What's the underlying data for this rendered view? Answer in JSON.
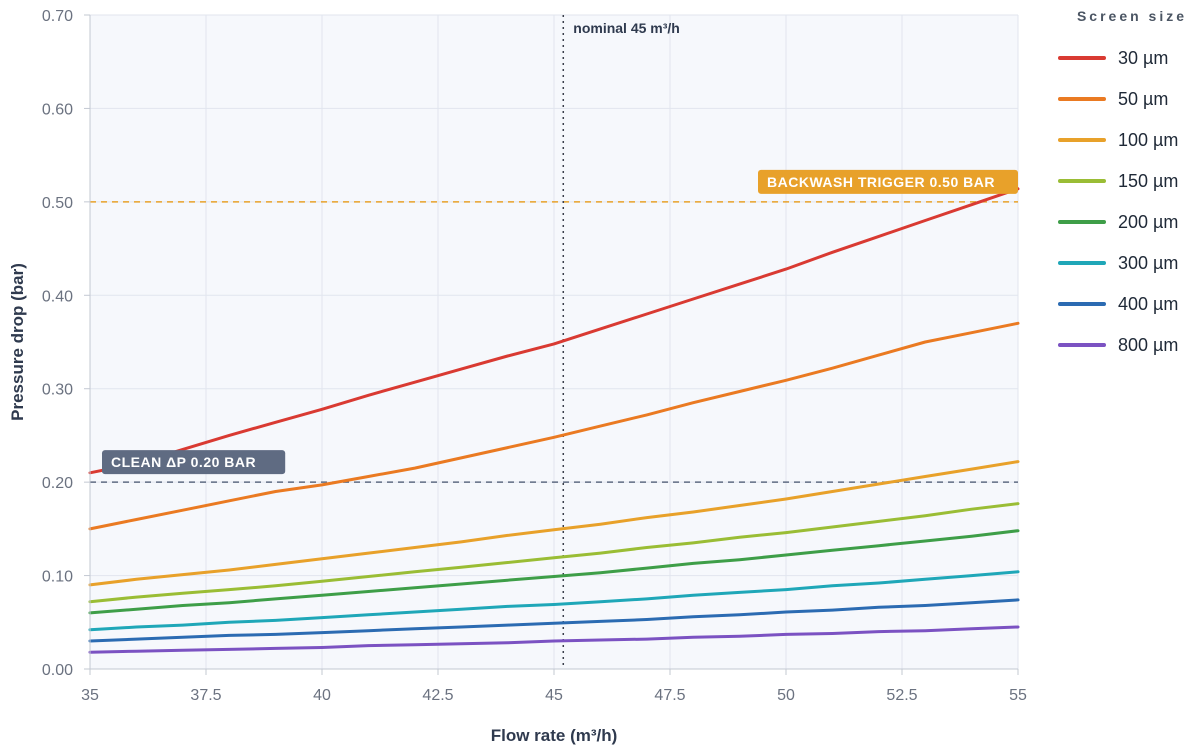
{
  "chart_data": {
    "type": "line",
    "xlabel": "Flow rate (m³/h)",
    "ylabel": "Pressure drop (bar)",
    "xlim": [
      35,
      55
    ],
    "ylim": [
      0,
      0.7
    ],
    "x_ticks": [
      "35",
      "37.5",
      "40",
      "42.5",
      "45",
      "47.5",
      "50",
      "52.5",
      "55"
    ],
    "y_ticks": [
      "0.00",
      "0.10",
      "0.20",
      "0.30",
      "0.40",
      "0.50",
      "0.60",
      "0.70"
    ],
    "grid": true,
    "legend": {
      "title": "Screen size",
      "placement": "right"
    },
    "x": [
      35,
      36,
      37,
      38,
      39,
      40,
      41,
      42,
      43,
      44,
      45,
      46,
      47,
      48,
      49,
      50,
      51,
      52,
      53,
      54,
      55
    ],
    "series": [
      {
        "name": "30 µm",
        "color": "#d93a32",
        "values": [
          0.21,
          0.22,
          0.235,
          0.25,
          0.264,
          0.278,
          0.293,
          0.307,
          0.321,
          0.335,
          0.348,
          0.364,
          0.38,
          0.396,
          0.412,
          0.428,
          0.446,
          0.463,
          0.48,
          0.497,
          0.514
        ]
      },
      {
        "name": "50 µm",
        "color": "#ea7a22",
        "values": [
          0.15,
          0.16,
          0.17,
          0.18,
          0.19,
          0.197,
          0.206,
          0.215,
          0.226,
          0.237,
          0.248,
          0.26,
          0.272,
          0.285,
          0.297,
          0.309,
          0.322,
          0.336,
          0.35,
          0.36,
          0.37
        ]
      },
      {
        "name": "100 µm",
        "color": "#e8a12a",
        "values": [
          0.09,
          0.096,
          0.101,
          0.106,
          0.112,
          0.118,
          0.124,
          0.13,
          0.136,
          0.143,
          0.149,
          0.155,
          0.162,
          0.168,
          0.175,
          0.182,
          0.19,
          0.198,
          0.206,
          0.214,
          0.222
        ]
      },
      {
        "name": "150 µm",
        "color": "#9abd35",
        "values": [
          0.072,
          0.077,
          0.081,
          0.085,
          0.089,
          0.094,
          0.099,
          0.104,
          0.109,
          0.114,
          0.119,
          0.124,
          0.13,
          0.135,
          0.141,
          0.146,
          0.152,
          0.158,
          0.164,
          0.171,
          0.177
        ]
      },
      {
        "name": "200 µm",
        "color": "#3e9e48",
        "values": [
          0.06,
          0.064,
          0.068,
          0.071,
          0.075,
          0.079,
          0.083,
          0.087,
          0.091,
          0.095,
          0.099,
          0.103,
          0.108,
          0.113,
          0.117,
          0.122,
          0.127,
          0.132,
          0.137,
          0.142,
          0.148
        ]
      },
      {
        "name": "300 µm",
        "color": "#1fa7b8",
        "values": [
          0.042,
          0.045,
          0.047,
          0.05,
          0.052,
          0.055,
          0.058,
          0.061,
          0.064,
          0.067,
          0.069,
          0.072,
          0.075,
          0.079,
          0.082,
          0.085,
          0.089,
          0.092,
          0.096,
          0.1,
          0.104
        ]
      },
      {
        "name": "400 µm",
        "color": "#2b6bb2",
        "values": [
          0.03,
          0.032,
          0.034,
          0.036,
          0.037,
          0.039,
          0.041,
          0.043,
          0.045,
          0.047,
          0.049,
          0.051,
          0.053,
          0.056,
          0.058,
          0.061,
          0.063,
          0.066,
          0.068,
          0.071,
          0.074
        ]
      },
      {
        "name": "800 µm",
        "color": "#7b52c2",
        "values": [
          0.018,
          0.019,
          0.02,
          0.021,
          0.022,
          0.023,
          0.025,
          0.026,
          0.027,
          0.028,
          0.03,
          0.031,
          0.032,
          0.034,
          0.035,
          0.037,
          0.038,
          0.04,
          0.041,
          0.043,
          0.045
        ]
      }
    ],
    "reference_lines": [
      {
        "id": "backwash",
        "axis": "y",
        "value": 0.5,
        "label": "BACKWASH TRIGGER 0.50 BAR",
        "color": "#e8a12a",
        "label_position": "top-right"
      },
      {
        "id": "clean",
        "axis": "y",
        "value": 0.2,
        "label": "CLEAN ΔP 0.20 BAR",
        "color": "#5f6b82",
        "label_position": "top-left"
      },
      {
        "id": "nominal",
        "axis": "x",
        "value": 45.2,
        "label": "nominal 45 m³/h",
        "color": "#3a3f4b"
      }
    ]
  }
}
